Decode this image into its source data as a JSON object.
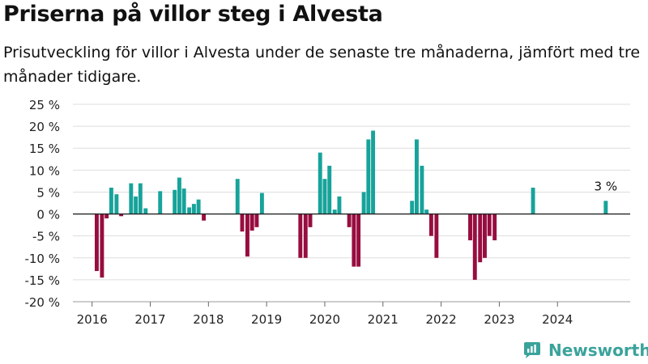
{
  "title": "Priserna på villor steg i Alvesta",
  "subtitle": "Prisutveckling för villor i Alvesta under de senaste tre månaderna, jämfört med tre månader tidigare.",
  "brand": {
    "name": "Newsworthy",
    "icon": "newsworthy-logo-icon",
    "color": "#3aa39b"
  },
  "colors": {
    "positive": "#17a39a",
    "negative": "#970d3f",
    "grid": "#dddddd",
    "axis": "#222222"
  },
  "chart_data": {
    "type": "bar",
    "title": "Priserna på villor steg i Alvesta",
    "ylim": [
      -20,
      25
    ],
    "yticks": [
      -20,
      -15,
      -10,
      -5,
      0,
      5,
      10,
      15,
      20,
      25
    ],
    "ytick_labels": [
      "-20 %",
      "-15 %",
      "-10 %",
      "-5 %",
      "0 %",
      "5 %",
      "10 %",
      "15 %",
      "20 %",
      "25 %"
    ],
    "xticks": [
      2016,
      2017,
      2018,
      2019,
      2020,
      2021,
      2022,
      2023,
      2024
    ],
    "xlim": [
      2015.67,
      2025.25
    ],
    "grid": true,
    "annotation": {
      "text": "3 %",
      "x": 2024.83,
      "y": 3
    },
    "series": [
      {
        "x": [
          2016.08,
          2016.17,
          2016.25,
          2016.33,
          2016.42,
          2016.5,
          2016.67,
          2016.75,
          2016.83,
          2016.92,
          2017.17,
          2017.42,
          2017.5,
          2017.58,
          2017.67,
          2017.75,
          2017.83,
          2017.92,
          2018.5,
          2018.58,
          2018.67,
          2018.75,
          2018.83,
          2018.92,
          2019.58,
          2019.67,
          2019.75,
          2019.92,
          2020.0,
          2020.08,
          2020.17,
          2020.25,
          2020.42,
          2020.5,
          2020.58,
          2020.67,
          2020.75,
          2020.83,
          2021.5,
          2021.58,
          2021.67,
          2021.75,
          2021.83,
          2021.92,
          2022.5,
          2022.58,
          2022.67,
          2022.75,
          2022.83,
          2022.92,
          2023.58,
          2024.83
        ],
        "values": [
          -13,
          -14.5,
          -1,
          6,
          4.5,
          -0.5,
          7,
          4,
          7,
          1.3,
          5.2,
          5.5,
          8.3,
          5.8,
          1.5,
          2.3,
          3.3,
          -1.5,
          8,
          -4,
          -9.7,
          -3.8,
          -3,
          4.8,
          -10,
          -10,
          -3,
          14,
          8,
          11,
          1,
          4,
          -3,
          -12,
          -12,
          5,
          17,
          19,
          3,
          17,
          11,
          1,
          -5,
          -10,
          -6,
          -15,
          -11,
          -10,
          -5,
          -6,
          6,
          3
        ]
      }
    ]
  }
}
